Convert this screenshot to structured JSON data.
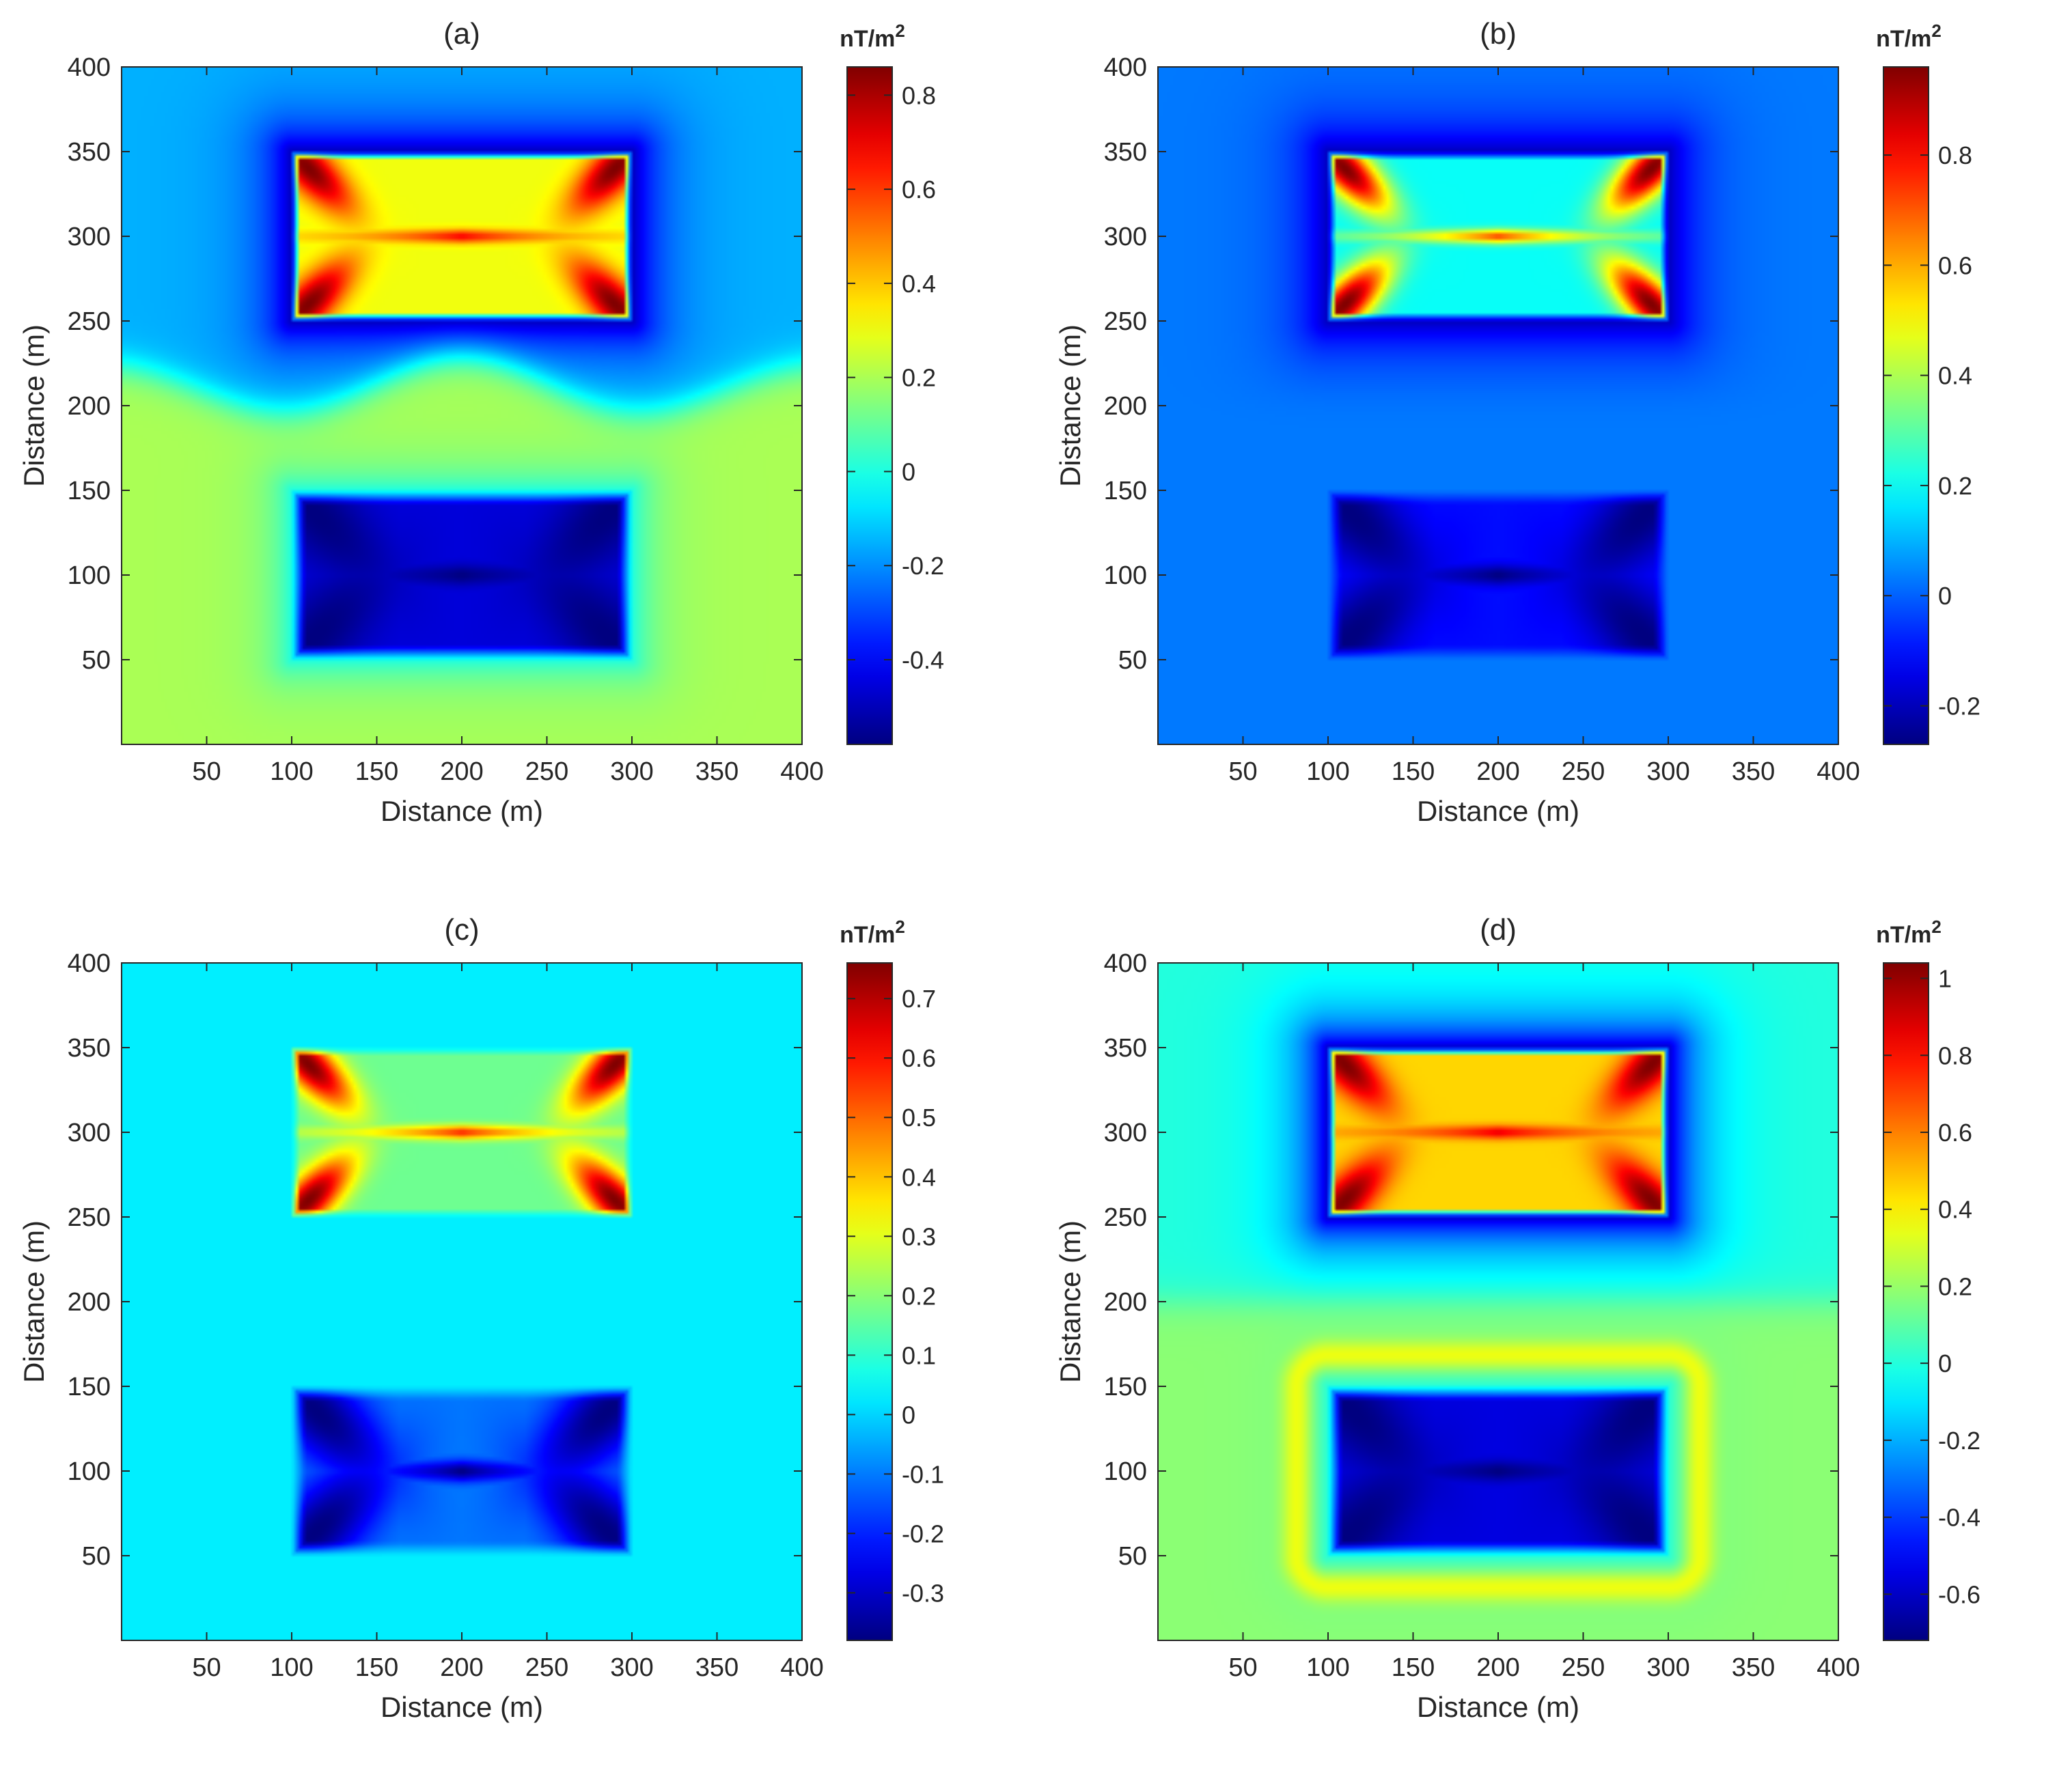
{
  "chart_data": [
    {
      "type": "heatmap",
      "title": "(a)",
      "xlabel": "Distance (m)",
      "ylabel": "Distance (m)",
      "xlim": [
        0,
        400
      ],
      "ylim": [
        0,
        400
      ],
      "xticks": [
        50,
        100,
        150,
        200,
        250,
        300,
        350,
        400
      ],
      "yticks": [
        50,
        100,
        150,
        200,
        250,
        300,
        350,
        400
      ],
      "colorbar": {
        "unit_base": "nT/m",
        "unit_exp": "2",
        "range": [
          -0.58,
          0.86
        ],
        "ticks": [
          -0.4,
          -0.2,
          0,
          0.2,
          0.4,
          0.6,
          0.8
        ],
        "tick_labels": [
          "-0.4",
          "-0.2",
          "0",
          "0.2",
          "0.4",
          "0.6",
          "0.8"
        ]
      },
      "colormap": "jet",
      "features": {
        "background_upper": -0.15,
        "background_lower": 0.2,
        "boundary": "wavy",
        "halo_upper": -0.5,
        "halo_lower": 0,
        "upper_block": {
          "x": [
            100,
            300
          ],
          "y": [
            250,
            350
          ],
          "base": 0.3,
          "lobe": 0.86,
          "ring": 0
        },
        "lower_block": {
          "x": [
            100,
            300
          ],
          "y": [
            50,
            150
          ],
          "base": -0.45,
          "lobe": -0.58,
          "ring": 0
        }
      }
    },
    {
      "type": "heatmap",
      "title": "(b)",
      "xlabel": "Distance (m)",
      "ylabel": "Distance (m)",
      "xlim": [
        0,
        400
      ],
      "ylim": [
        0,
        400
      ],
      "xticks": [
        50,
        100,
        150,
        200,
        250,
        300,
        350,
        400
      ],
      "yticks": [
        50,
        100,
        150,
        200,
        250,
        300,
        350,
        400
      ],
      "colorbar": {
        "unit_base": "nT/m",
        "unit_exp": "2",
        "range": [
          -0.27,
          0.96
        ],
        "ticks": [
          -0.2,
          0,
          0.2,
          0.4,
          0.6,
          0.8
        ],
        "tick_labels": [
          "-0.2",
          "0",
          "0.2",
          "0.4",
          "0.6",
          "0.8"
        ]
      },
      "colormap": "jet",
      "features": {
        "background_upper": 0.03,
        "background_lower": 0.03,
        "boundary": "flat",
        "halo_upper": -0.2,
        "halo_lower": 0.03,
        "upper_block": {
          "x": [
            100,
            300
          ],
          "y": [
            250,
            350
          ],
          "base": 0.2,
          "lobe": 0.96,
          "ring": 0
        },
        "lower_block": {
          "x": [
            100,
            300
          ],
          "y": [
            50,
            150
          ],
          "base": -0.1,
          "lobe": -0.27,
          "ring": 0
        }
      }
    },
    {
      "type": "heatmap",
      "title": "(c)",
      "xlabel": "Distance (m)",
      "ylabel": "Distance (m)",
      "xlim": [
        0,
        400
      ],
      "ylim": [
        0,
        400
      ],
      "xticks": [
        50,
        100,
        150,
        200,
        250,
        300,
        350,
        400
      ],
      "yticks": [
        50,
        100,
        150,
        200,
        250,
        300,
        350,
        400
      ],
      "colorbar": {
        "unit_base": "nT/m",
        "unit_exp": "2",
        "range": [
          -0.38,
          0.76
        ],
        "ticks": [
          -0.3,
          -0.2,
          -0.1,
          0,
          0.1,
          0.2,
          0.3,
          0.4,
          0.5,
          0.6,
          0.7
        ],
        "tick_labels": [
          "-0.3",
          "-0.2",
          "-0.1",
          "0",
          "0.1",
          "0.2",
          "0.3",
          "0.4",
          "0.5",
          "0.6",
          "0.7"
        ]
      },
      "colormap": "jet",
      "features": {
        "background_upper": 0.03,
        "background_lower": 0.03,
        "boundary": "flat",
        "halo_upper": 0.03,
        "halo_lower": 0.03,
        "upper_block": {
          "x": [
            100,
            300
          ],
          "y": [
            250,
            350
          ],
          "base": 0.17,
          "lobe": 0.76,
          "ring": 0
        },
        "lower_block": {
          "x": [
            100,
            300
          ],
          "y": [
            50,
            150
          ],
          "base": -0.1,
          "lobe": -0.38,
          "ring": 0
        }
      }
    },
    {
      "type": "heatmap",
      "title": "(d)",
      "xlabel": "Distance (m)",
      "ylabel": "Distance (m)",
      "xlim": [
        0,
        400
      ],
      "ylim": [
        0,
        400
      ],
      "xticks": [
        50,
        100,
        150,
        200,
        250,
        300,
        350,
        400
      ],
      "yticks": [
        50,
        100,
        150,
        200,
        250,
        300,
        350,
        400
      ],
      "colorbar": {
        "unit_base": "nT/m",
        "unit_exp": "2",
        "range": [
          -0.72,
          1.04
        ],
        "ticks": [
          -0.6,
          -0.4,
          -0.2,
          0,
          0.2,
          0.4,
          0.6,
          0.8,
          1
        ],
        "tick_labels": [
          "-0.6",
          "-0.4",
          "-0.2",
          "0",
          "0.2",
          "0.4",
          "0.6",
          "0.8",
          "1"
        ]
      },
      "colormap": "jet",
      "features": {
        "background_upper": 0.0,
        "background_lower": 0.18,
        "boundary": "flat",
        "halo_upper": -0.6,
        "halo_lower": 0.0,
        "upper_block": {
          "x": [
            100,
            300
          ],
          "y": [
            250,
            350
          ],
          "base": 0.45,
          "lobe": 1.04,
          "ring": 0
        },
        "lower_block": {
          "x": [
            100,
            300
          ],
          "y": [
            50,
            150
          ],
          "base": -0.55,
          "lobe": -0.72,
          "ring": 0.4
        }
      }
    }
  ]
}
